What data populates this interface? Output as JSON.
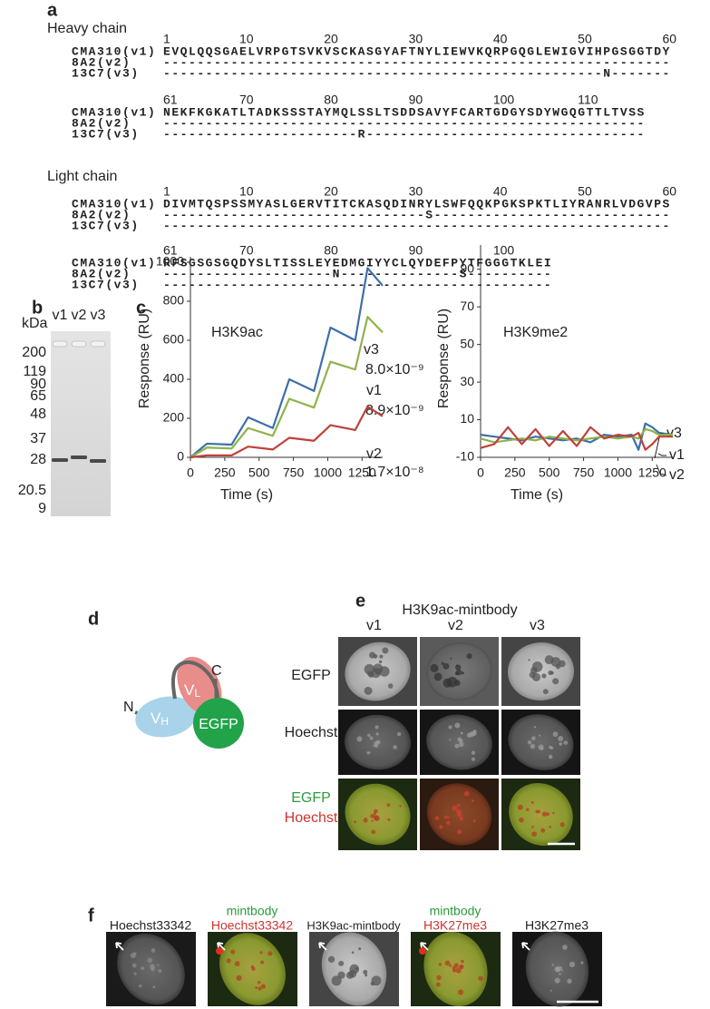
{
  "panel_a": {
    "label": "a",
    "sections": [
      {
        "title": "Heavy chain",
        "blocks": [
          {
            "ruler": [
              1,
              10,
              20,
              30,
              40,
              50,
              60
            ],
            "rows": [
              {
                "name": "CMA310(v1)",
                "seq": "EVQLQQSGAELVRPGTSVKVSCKASGYAFTNYLIEWVKQRPGQGLEWIGVIHPGSGGTDY"
              },
              {
                "name": "8A2(v2)",
                "seq": "------------------------------------------------------------"
              },
              {
                "name": "13C7(v3)",
                "seq": "----------------------------------------------------N-------"
              }
            ]
          },
          {
            "ruler": [
              61,
              70,
              80,
              90,
              100,
              110
            ],
            "rows": [
              {
                "name": "CMA310(v1)",
                "seq": "NEKFKGKATLTADKSSSTAYMQLSSLTSDDSAVYFCARTGDGYSDYWGQGTTLTVSS"
              },
              {
                "name": "8A2(v2)",
                "seq": "---------------------------------------------------------"
              },
              {
                "name": "13C7(v3)",
                "seq": "-----------------------R---------------------------------"
              }
            ]
          }
        ]
      },
      {
        "title": "Light chain",
        "blocks": [
          {
            "ruler": [
              1,
              10,
              20,
              30,
              40,
              50,
              60
            ],
            "rows": [
              {
                "name": "CMA310(v1)",
                "seq": "DIVMTQSPSSMYASLGERVTITCKASQDINRYLSWFQQKPGKSPKTLIYRANRLVDGVPS"
              },
              {
                "name": "8A2(v2)",
                "seq": "-------------------------------S----------------------------"
              },
              {
                "name": "13C7(v3)",
                "seq": "------------------------------------------------------------"
              }
            ]
          },
          {
            "ruler": [
              61,
              70,
              80,
              90,
              100
            ],
            "rows": [
              {
                "name": "CMA310(v1)",
                "seq": "RFSGSGSGQDYSLTISSLEYEDMGIYYCLQYDEFPYTFGGGTKLEI"
              },
              {
                "name": "8A2(v2)",
                "seq": "--------------------N--------------S----------"
              },
              {
                "name": "13C7(v3)",
                "seq": "----------------------------------------------"
              }
            ]
          }
        ]
      }
    ]
  },
  "panel_b": {
    "label": "b",
    "unit": "kDa",
    "lanes": [
      "v1",
      "v2",
      "v3"
    ],
    "markers": [
      "200",
      "119",
      "90",
      "65",
      "48",
      "37",
      "28",
      "20.5",
      "9"
    ]
  },
  "panel_c": {
    "label": "c"
  },
  "chart_data": [
    {
      "type": "line",
      "title": "H3K9ac",
      "xlabel": "Time (s)",
      "ylabel": "Response (RU)",
      "xlim": [
        0,
        1400
      ],
      "ylim": [
        0,
        1000
      ],
      "xticks": [
        0,
        250,
        500,
        750,
        1000,
        1250
      ],
      "yticks": [
        0,
        200,
        400,
        600,
        800,
        1000
      ],
      "x": [
        0,
        120,
        300,
        420,
        600,
        720,
        900,
        1020,
        1200,
        1290,
        1400
      ],
      "series": [
        {
          "name": "v3",
          "color": "#3d6fa8",
          "annotation": "8.0×10⁻⁹",
          "values": [
            0,
            70,
            65,
            205,
            150,
            400,
            340,
            665,
            600,
            970,
            880
          ]
        },
        {
          "name": "v1",
          "color": "#8db44a",
          "annotation": "8.9×10⁻⁹",
          "values": [
            0,
            50,
            45,
            150,
            110,
            300,
            255,
            490,
            450,
            720,
            640
          ]
        },
        {
          "name": "v2",
          "color": "#c0413a",
          "annotation": "1.7×10⁻⁸",
          "values": [
            0,
            10,
            10,
            55,
            40,
            100,
            85,
            165,
            140,
            260,
            210
          ]
        }
      ]
    },
    {
      "type": "line",
      "title": "H3K9me2",
      "xlabel": "Time (s)",
      "ylabel": "Response (RU)",
      "xlim": [
        0,
        1400
      ],
      "ylim": [
        -10,
        100
      ],
      "xticks": [
        0,
        250,
        500,
        750,
        1000,
        1250
      ],
      "yticks": [
        -10,
        10,
        30,
        50,
        70,
        90
      ],
      "x": [
        0,
        100,
        200,
        300,
        400,
        500,
        600,
        700,
        800,
        900,
        1000,
        1100,
        1150,
        1200,
        1250,
        1300,
        1400
      ],
      "series": [
        {
          "name": "v3",
          "color": "#3d6fa8",
          "values": [
            2,
            1,
            0,
            -1,
            1,
            0,
            -1,
            0,
            -2,
            2,
            1,
            2,
            -6,
            8,
            6,
            3,
            2
          ]
        },
        {
          "name": "v1",
          "color": "#8db44a",
          "values": [
            0,
            -2,
            -1,
            0,
            -1,
            1,
            0,
            -1,
            0,
            1,
            0,
            1,
            0,
            5,
            4,
            2,
            2
          ]
        },
        {
          "name": "v2",
          "color": "#c0413a",
          "values": [
            -5,
            -3,
            6,
            -3,
            5,
            -4,
            4,
            -4,
            6,
            0,
            2,
            1,
            3,
            -6,
            -3,
            1,
            1
          ]
        }
      ]
    }
  ],
  "panel_d": {
    "label": "d",
    "n_term": "N",
    "c_term": "C",
    "vh": {
      "letter": "V",
      "sub": "H"
    },
    "vl": {
      "letter": "V",
      "sub": "L"
    },
    "egfp": "EGFP"
  },
  "panel_e": {
    "label": "e",
    "title": "H3K9ac-mintbody",
    "columns": [
      "v1",
      "v2",
      "v3"
    ],
    "rows": [
      "EGFP",
      "Hoechst"
    ],
    "merge": [
      {
        "text": "EGFP",
        "color": "#2e9a3c"
      },
      {
        "text": "Hoechst",
        "color": "#d0332f"
      }
    ]
  },
  "panel_f": {
    "label": "f",
    "columns": [
      {
        "lines": [
          {
            "text": "Hoechst33342",
            "color": "#222222"
          }
        ]
      },
      {
        "lines": [
          {
            "text": "mintbody",
            "color": "#2e9a3c"
          },
          {
            "text": "Hoechst33342",
            "color": "#d0332f"
          }
        ]
      },
      {
        "lines": [
          {
            "text": "H3K9ac-mintbody",
            "color": "#222222"
          }
        ]
      },
      {
        "lines": [
          {
            "text": "mintbody",
            "color": "#2e9a3c"
          },
          {
            "text": "H3K27me3",
            "color": "#d0332f"
          }
        ]
      },
      {
        "lines": [
          {
            "text": "H3K27me3",
            "color": "#222222"
          }
        ]
      }
    ]
  }
}
